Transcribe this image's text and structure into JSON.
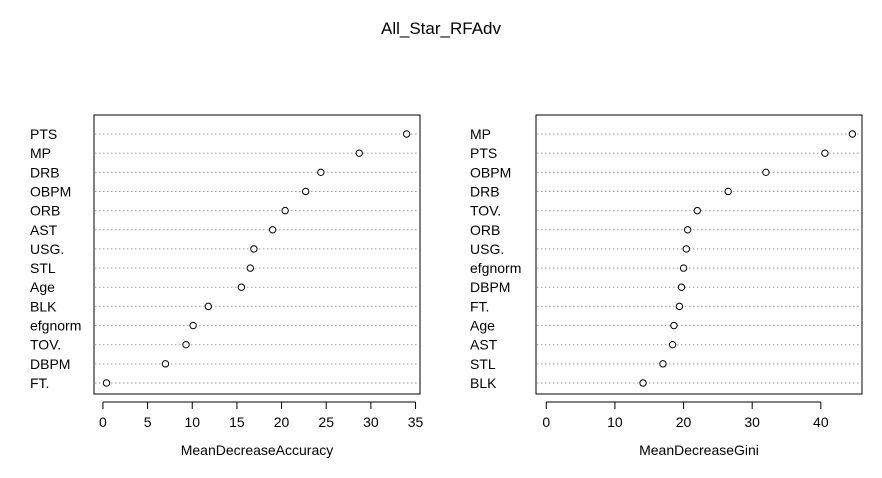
{
  "title": "All_Star_RFAdv",
  "chart_data": [
    {
      "type": "scatter",
      "subtype": "dotchart",
      "title": "",
      "xlabel": "MeanDecreaseAccuracy",
      "ylabel": "",
      "xlim": [
        -1,
        35.5
      ],
      "xticks": [
        0,
        5,
        10,
        15,
        20,
        25,
        30,
        35
      ],
      "categories": [
        "PTS",
        "MP",
        "DRB",
        "OBPM",
        "ORB",
        "AST",
        "USG.",
        "STL",
        "Age",
        "BLK",
        "efgnorm",
        "TOV.",
        "DBPM",
        "FT."
      ],
      "values": [
        34.0,
        28.7,
        24.4,
        22.7,
        20.4,
        19.0,
        16.9,
        16.5,
        15.5,
        11.8,
        10.1,
        9.3,
        7.0,
        0.4
      ],
      "grid": "dotted-horizontal"
    },
    {
      "type": "scatter",
      "subtype": "dotchart",
      "title": "",
      "xlabel": "MeanDecreaseGini",
      "ylabel": "",
      "xlim": [
        -1.5,
        46
      ],
      "xticks": [
        0,
        10,
        20,
        30,
        40
      ],
      "categories": [
        "MP",
        "PTS",
        "OBPM",
        "DRB",
        "TOV.",
        "ORB",
        "USG.",
        "efgnorm",
        "DBPM",
        "FT.",
        "Age",
        "AST",
        "STL",
        "BLK"
      ],
      "values": [
        44.6,
        40.6,
        32.0,
        26.5,
        22.0,
        20.6,
        20.4,
        20.0,
        19.7,
        19.4,
        18.6,
        18.4,
        17.0,
        14.1
      ],
      "grid": "dotted-horizontal"
    }
  ]
}
